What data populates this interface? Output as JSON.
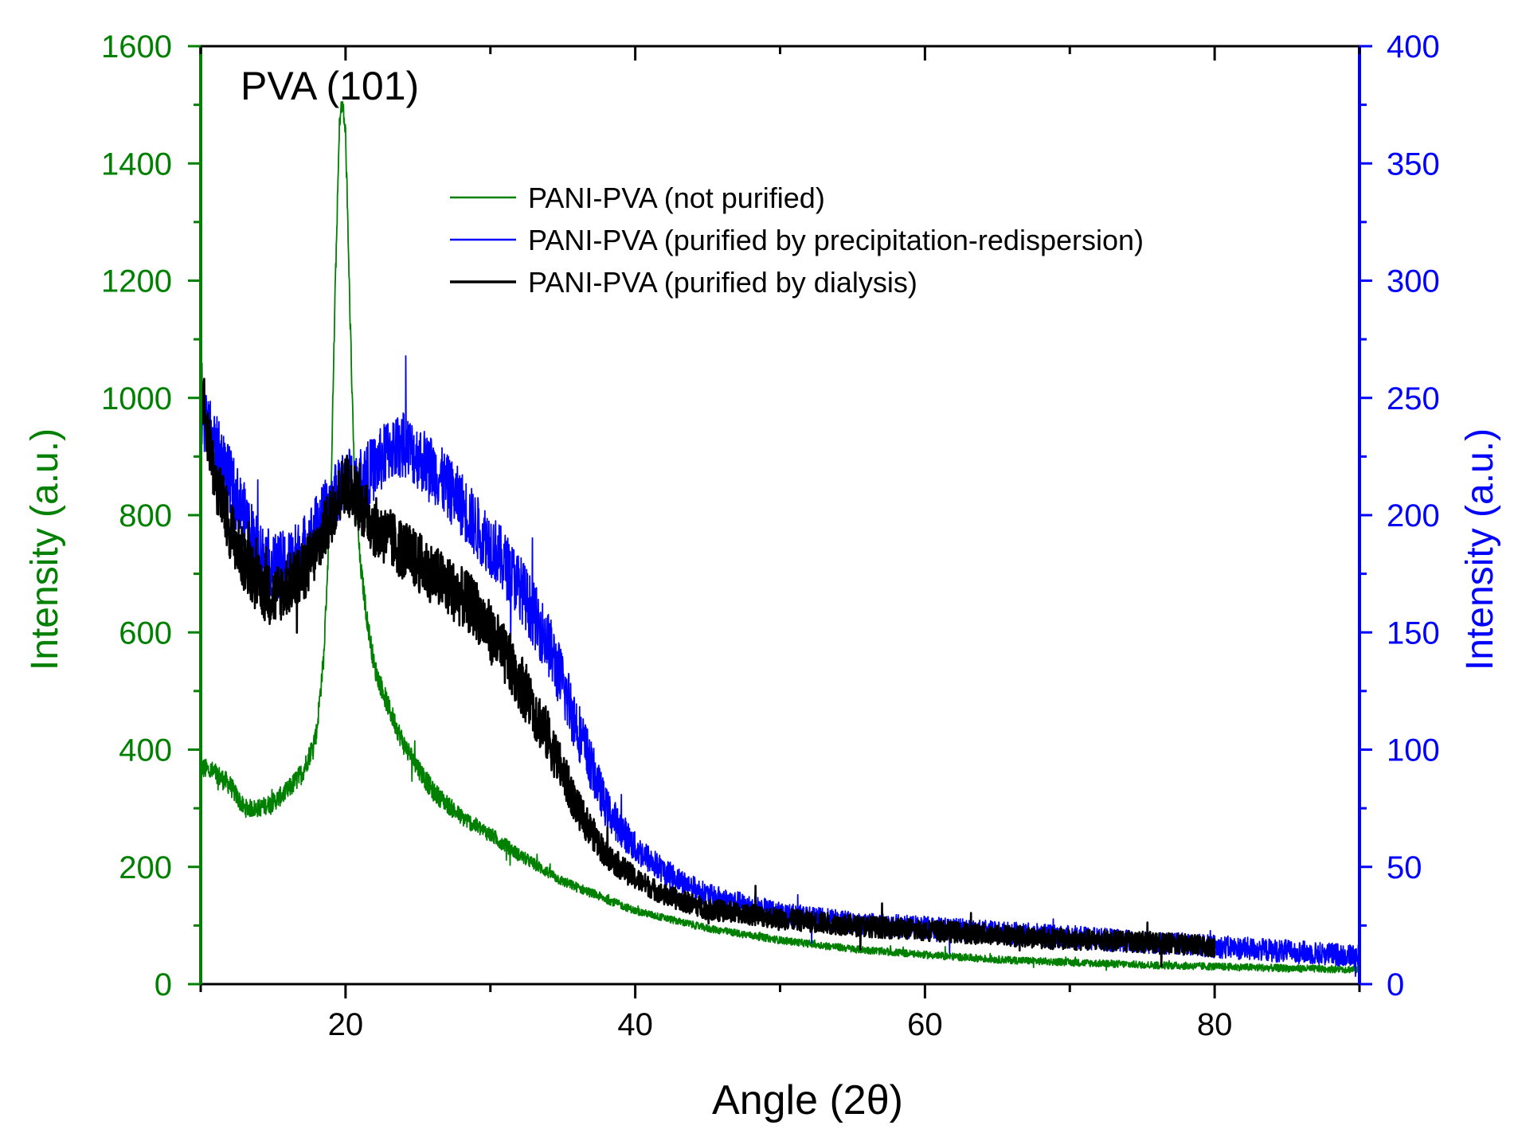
{
  "chart_data": {
    "type": "line",
    "title": "",
    "annotation": "PVA (101)",
    "xlabel": "Angle (2θ)",
    "ylabel_left": "Intensity (a.u.)",
    "ylabel_right": "Intensity (a.u.)",
    "xlim": [
      10,
      90
    ],
    "ylim_left": [
      0,
      1600
    ],
    "ylim_right": [
      0,
      400
    ],
    "x_ticks": [
      20,
      40,
      60,
      80
    ],
    "y_left_ticks": [
      0,
      200,
      400,
      600,
      800,
      1000,
      1200,
      1400,
      1600
    ],
    "y_right_ticks": [
      0,
      50,
      100,
      150,
      200,
      250,
      300,
      350,
      400
    ],
    "colors": {
      "left_axis": "#008000",
      "right_axis": "#0000ff",
      "axes": "#000000"
    },
    "legend_position": "top-center",
    "series": [
      {
        "name": "PANI-PVA (not purified)",
        "color": "#008000",
        "axis": "left",
        "noise": 18,
        "x": [
          10,
          11,
          12,
          13,
          14,
          15,
          16,
          17,
          17.5,
          18,
          18.5,
          19,
          19.3,
          19.6,
          19.8,
          20,
          20.3,
          20.6,
          21,
          21.5,
          22,
          23,
          24,
          25,
          26,
          28,
          30,
          32,
          35,
          38,
          40,
          45,
          50,
          55,
          60,
          65,
          70,
          75,
          80,
          85,
          90
        ],
        "y": [
          370,
          360,
          340,
          300,
          300,
          310,
          330,
          360,
          390,
          430,
          560,
          850,
          1200,
          1480,
          1500,
          1450,
          1150,
          880,
          720,
          620,
          540,
          470,
          410,
          370,
          330,
          285,
          255,
          220,
          175,
          145,
          125,
          95,
          75,
          60,
          50,
          42,
          37,
          33,
          30,
          27,
          25
        ]
      },
      {
        "name": "PANI-PVA (purified by precipitation-redispersion)",
        "color": "#0000ff",
        "axis": "right",
        "noise": 14,
        "x": [
          10,
          11,
          12,
          13,
          14,
          15,
          16,
          17,
          18,
          19,
          20,
          21,
          22,
          23,
          24,
          25,
          26,
          27,
          28,
          29,
          30,
          32,
          34,
          36,
          38,
          40,
          42,
          45,
          50,
          55,
          60,
          65,
          70,
          75,
          80,
          85,
          90
        ],
        "y": [
          245,
          230,
          215,
          200,
          185,
          178,
          180,
          185,
          195,
          205,
          215,
          215,
          220,
          228,
          230,
          225,
          220,
          212,
          205,
          195,
          188,
          170,
          145,
          110,
          75,
          58,
          48,
          38,
          30,
          26,
          24,
          22,
          20,
          18,
          16,
          14,
          12
        ]
      },
      {
        "name": "PANI-PVA (purified by dialysis)",
        "color": "#000000",
        "axis": "right",
        "noise": 13,
        "x": [
          10,
          10.5,
          11,
          12,
          13,
          14,
          15,
          16,
          17,
          18,
          19,
          20,
          21,
          22,
          23,
          24,
          25,
          26,
          27,
          28,
          29,
          30,
          32,
          34,
          36,
          38,
          40,
          42,
          45,
          50,
          55,
          60,
          65,
          70,
          75,
          80
        ],
        "y": [
          255,
          235,
          215,
          195,
          180,
          170,
          165,
          170,
          175,
          185,
          200,
          215,
          205,
          195,
          190,
          185,
          180,
          175,
          170,
          165,
          160,
          150,
          130,
          105,
          75,
          55,
          45,
          38,
          32,
          28,
          25,
          23,
          21,
          19,
          18,
          16
        ]
      }
    ]
  }
}
